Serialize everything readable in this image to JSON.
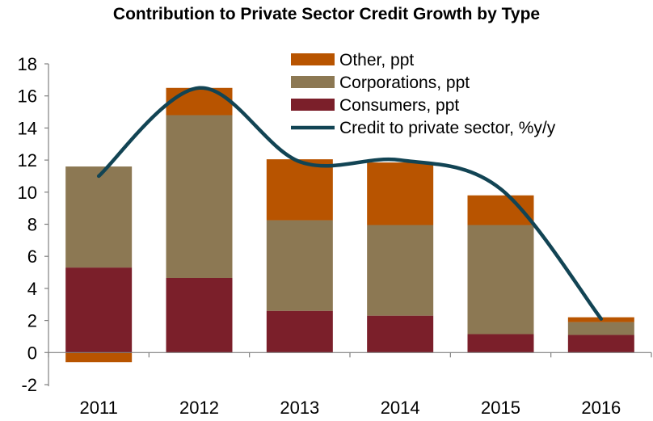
{
  "chart_data": {
    "type": "bar",
    "title": "Contribution to Private Sector Credit Growth by Type",
    "categories": [
      "2011",
      "2012",
      "2013",
      "2014",
      "2015",
      "2016"
    ],
    "stacked": true,
    "series": [
      {
        "name": "Consumers, ppt",
        "color": "#7b1f2a",
        "values": [
          5.3,
          4.65,
          2.6,
          2.3,
          1.15,
          1.1
        ]
      },
      {
        "name": "Corporations, ppt",
        "color": "#8c7853",
        "values": [
          6.3,
          10.15,
          5.65,
          5.65,
          6.8,
          0.8
        ]
      },
      {
        "name": "Other, ppt",
        "color": "#b85400",
        "values": [
          -0.6,
          1.7,
          3.8,
          3.9,
          1.85,
          0.3
        ]
      }
    ],
    "line_series": {
      "name": "Credit to private sector, %y/y",
      "color": "#124454",
      "values": [
        11,
        16.5,
        11.9,
        12.0,
        10.2,
        2.1
      ]
    },
    "yticks": [
      "-2",
      "0",
      "2",
      "4",
      "6",
      "8",
      "10",
      "12",
      "14",
      "16",
      "18"
    ],
    "ylim": [
      -2,
      18
    ],
    "xlabel": "",
    "ylabel": "",
    "legend_position": "top-right",
    "grid": false
  }
}
